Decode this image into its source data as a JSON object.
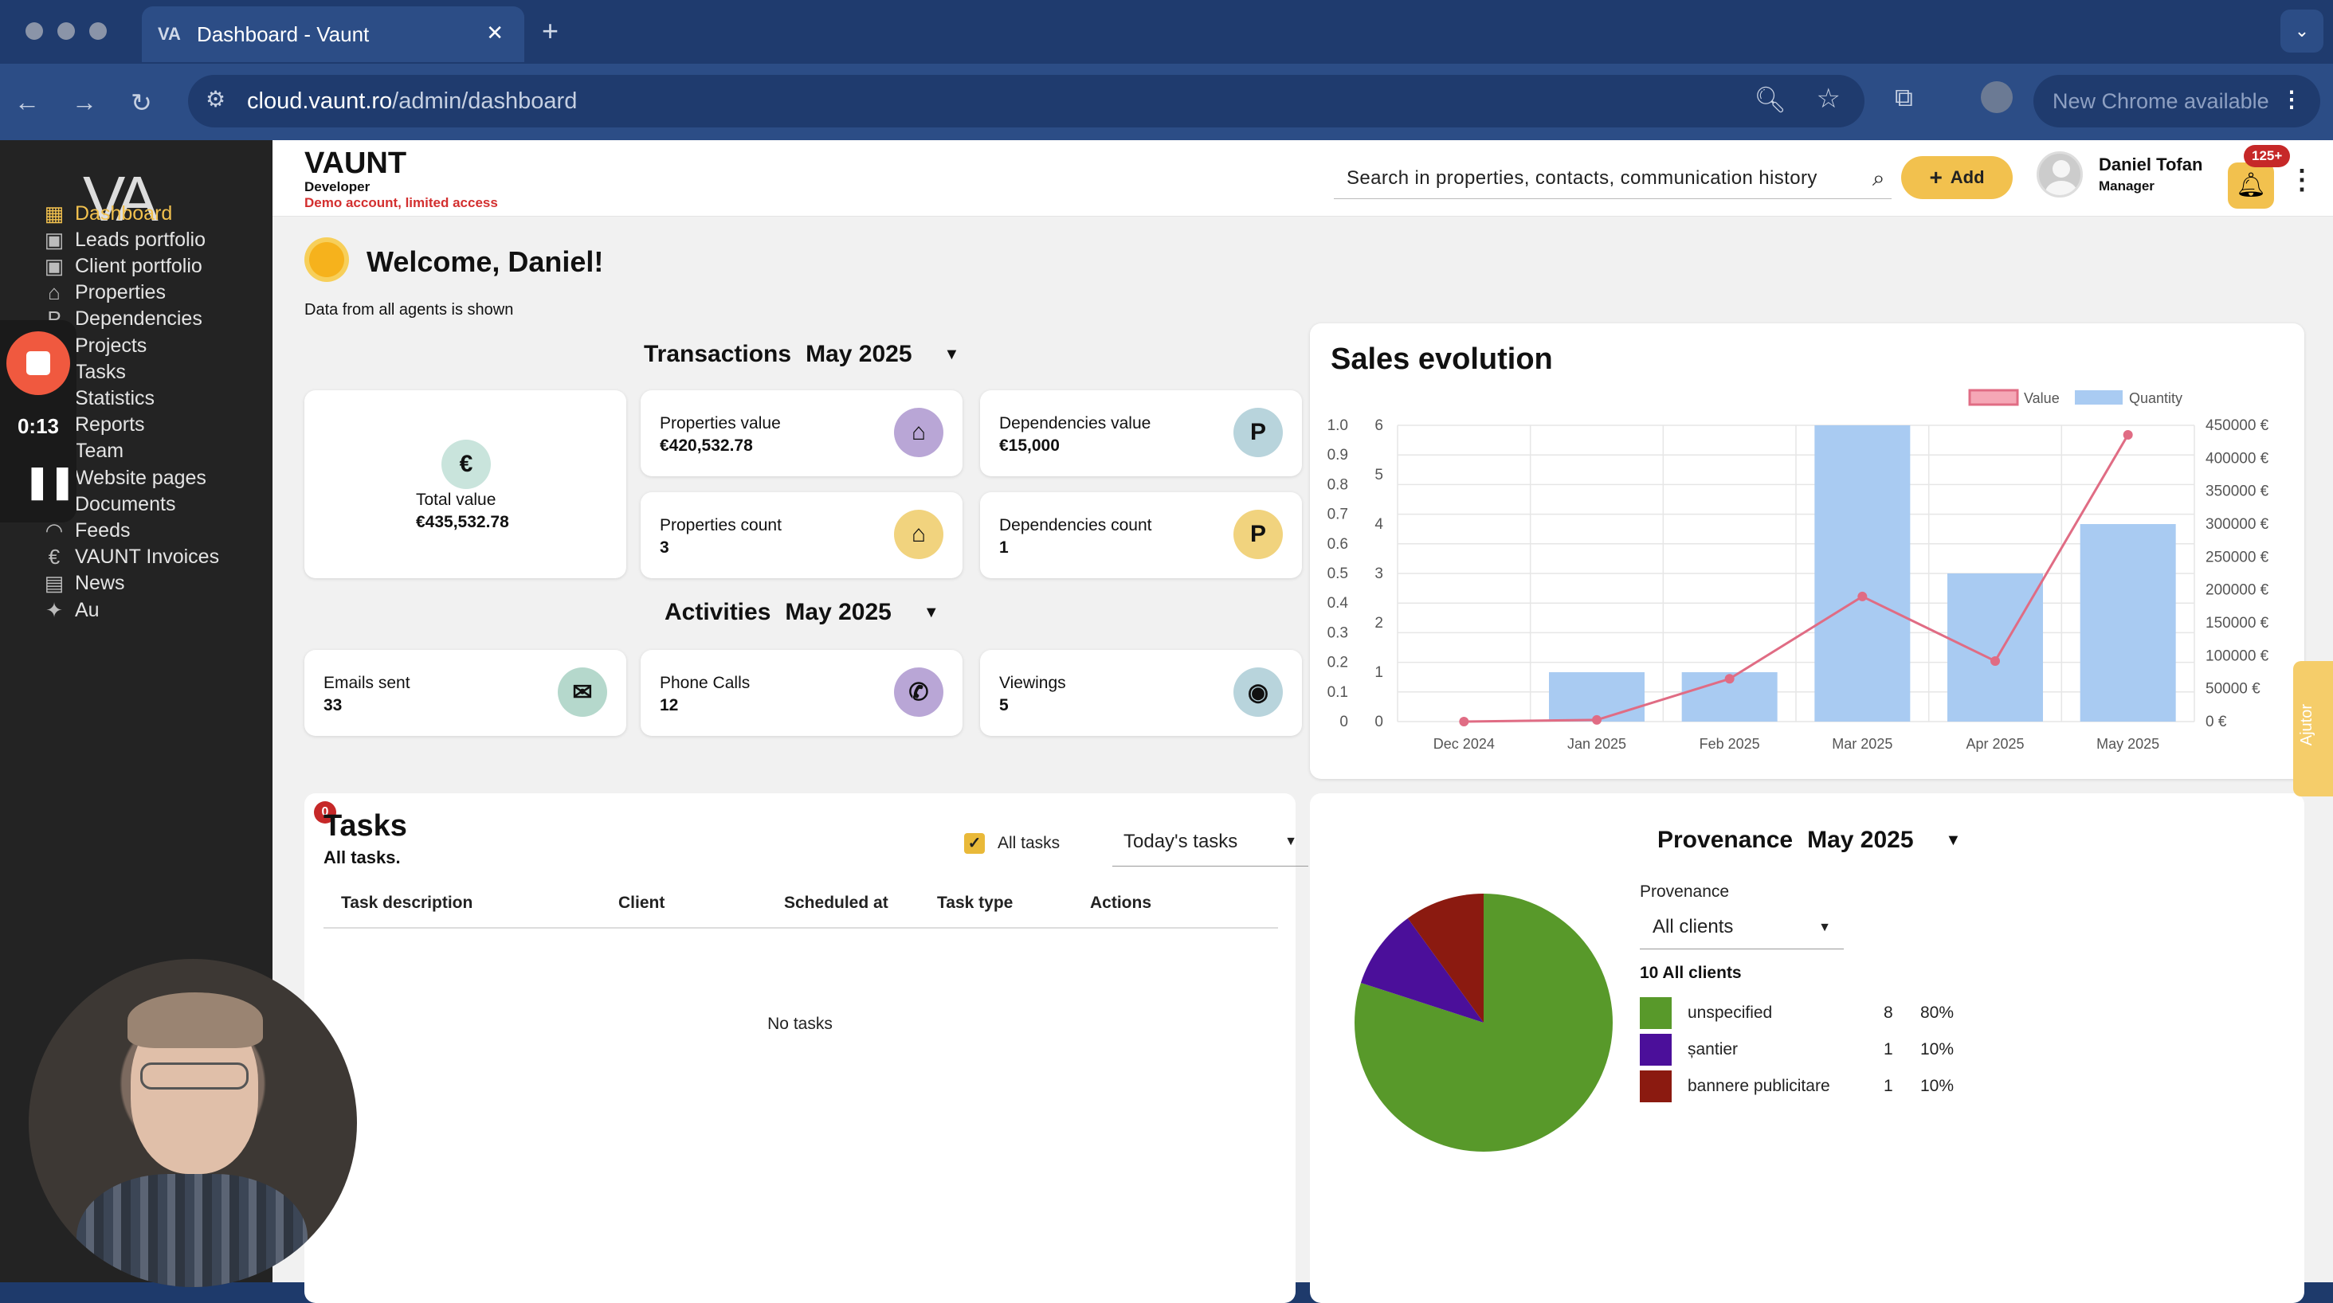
{
  "browser": {
    "tab_title": "Dashboard - Vaunt",
    "tab_logo": "VA",
    "url_domain": "cloud.vaunt.ro",
    "url_path": "/admin/dashboard",
    "update_label": "New Chrome available"
  },
  "sidebar": {
    "logo": "VA",
    "items": [
      {
        "label": "Dashboard",
        "icon": "dashboard-icon",
        "active": true
      },
      {
        "label": "Leads portfolio",
        "icon": "badge-icon"
      },
      {
        "label": "Client portfolio",
        "icon": "badge-icon"
      },
      {
        "label": "Properties",
        "icon": "home-icon"
      },
      {
        "label": "Dependencies",
        "icon": "parking-icon"
      },
      {
        "label": "Projects",
        "icon": "folder-icon"
      },
      {
        "label": "Tasks",
        "icon": "clipboard-icon"
      },
      {
        "label": "Statistics",
        "icon": "pie-chart-icon"
      },
      {
        "label": "Reports",
        "icon": "report-icon"
      },
      {
        "label": "Team",
        "icon": "team-icon"
      },
      {
        "label": "Website pages",
        "icon": "globe-icon"
      },
      {
        "label": "Documents",
        "icon": "document-icon"
      },
      {
        "label": "Feeds",
        "icon": "rss-icon"
      },
      {
        "label": "VAUNT Invoices",
        "icon": "euro-icon"
      },
      {
        "label": "News",
        "icon": "newspaper-icon"
      },
      {
        "label": "Au",
        "icon": "sparkle-icon"
      }
    ]
  },
  "recorder": {
    "time": "0:13"
  },
  "header": {
    "brand": "VAUNT",
    "role": "Developer",
    "demo_note": "Demo account, limited access",
    "search_placeholder": "Search in properties, contacts, communication history",
    "add_label": "Add",
    "user_name": "Daniel Tofan",
    "user_role": "Manager",
    "notif_badge": "125+"
  },
  "welcome": {
    "title": "Welcome, Daniel!",
    "note": "Data from all agents is shown"
  },
  "transactions": {
    "title": "Transactions",
    "month": "May 2025",
    "total_label": "Total value",
    "total_value": "€435,532.78",
    "cards": [
      {
        "label": "Properties value",
        "value": "€420,532.78",
        "icon": "home-icon",
        "color": "#b9a6d6"
      },
      {
        "label": "Dependencies value",
        "value": "€15,000",
        "icon": "parking-icon",
        "color": "#b8d4dc"
      },
      {
        "label": "Properties count",
        "value": "3",
        "icon": "home-icon",
        "color": "#f1d37e"
      },
      {
        "label": "Dependencies count",
        "value": "1",
        "icon": "parking-icon",
        "color": "#f1d37e"
      }
    ]
  },
  "activities": {
    "title": "Activities",
    "month": "May 2025",
    "cards": [
      {
        "label": "Emails sent",
        "value": "33",
        "icon": "mail-icon",
        "color": "#b5d8cc"
      },
      {
        "label": "Phone Calls",
        "value": "12",
        "icon": "phone-icon",
        "color": "#b9a6d6"
      },
      {
        "label": "Viewings",
        "value": "5",
        "icon": "eye-icon",
        "color": "#b8d4dc"
      }
    ]
  },
  "tasks": {
    "badge": "0",
    "title": "Tasks",
    "subtitle": "All tasks.",
    "checkbox_label": "All tasks",
    "filter_value": "Today's tasks",
    "columns": [
      "Task description",
      "Client",
      "Scheduled at",
      "Task type",
      "Actions"
    ],
    "empty": "No tasks"
  },
  "chart_data": [
    {
      "type": "bar",
      "title": "Sales evolution",
      "categories": [
        "Dec 2024",
        "Jan 2025",
        "Feb 2025",
        "Mar 2025",
        "Apr 2025",
        "May 2025"
      ],
      "series": [
        {
          "name": "Value",
          "kind": "line",
          "axis": "right",
          "color": "#e06c84",
          "values": [
            0,
            2500,
            65000,
            190000,
            92000,
            435532.78
          ]
        },
        {
          "name": "Quantity",
          "kind": "bar",
          "axis": "left",
          "color": "#a9cbf2",
          "values": [
            0,
            1,
            1,
            6,
            3,
            4
          ]
        }
      ],
      "left_axis_ticks_a": [
        "1.0",
        "0.9",
        "0.8",
        "0.7",
        "0.6",
        "0.5",
        "0.4",
        "0.3",
        "0.2",
        "0.1",
        "0"
      ],
      "left_axis_ticks_b": [
        "6",
        "5",
        "4",
        "3",
        "2",
        "1",
        "0"
      ],
      "right_axis_ticks": [
        "450000 €",
        "400000 €",
        "350000 €",
        "300000 €",
        "250000 €",
        "200000 €",
        "150000 €",
        "100000 €",
        "50000 €",
        "0 €"
      ],
      "ylim_left": [
        0,
        6
      ],
      "ylim_right": [
        0,
        450000
      ],
      "legend": "top"
    },
    {
      "type": "pie",
      "title": "Provenance",
      "month": "May 2025",
      "filter_label": "Provenance",
      "filter_value": "All clients",
      "total_label": "10 All clients",
      "slices": [
        {
          "name": "unspecified",
          "count": "8",
          "percent": "80%",
          "value": 80,
          "color": "#58992a"
        },
        {
          "name": "șantier",
          "count": "1",
          "percent": "10%",
          "value": 10,
          "color": "#4b0f9a"
        },
        {
          "name": "bannere publicitare",
          "count": "1",
          "percent": "10%",
          "value": 10,
          "color": "#8b1a10"
        }
      ]
    }
  ],
  "help_tab": "Ajutor"
}
